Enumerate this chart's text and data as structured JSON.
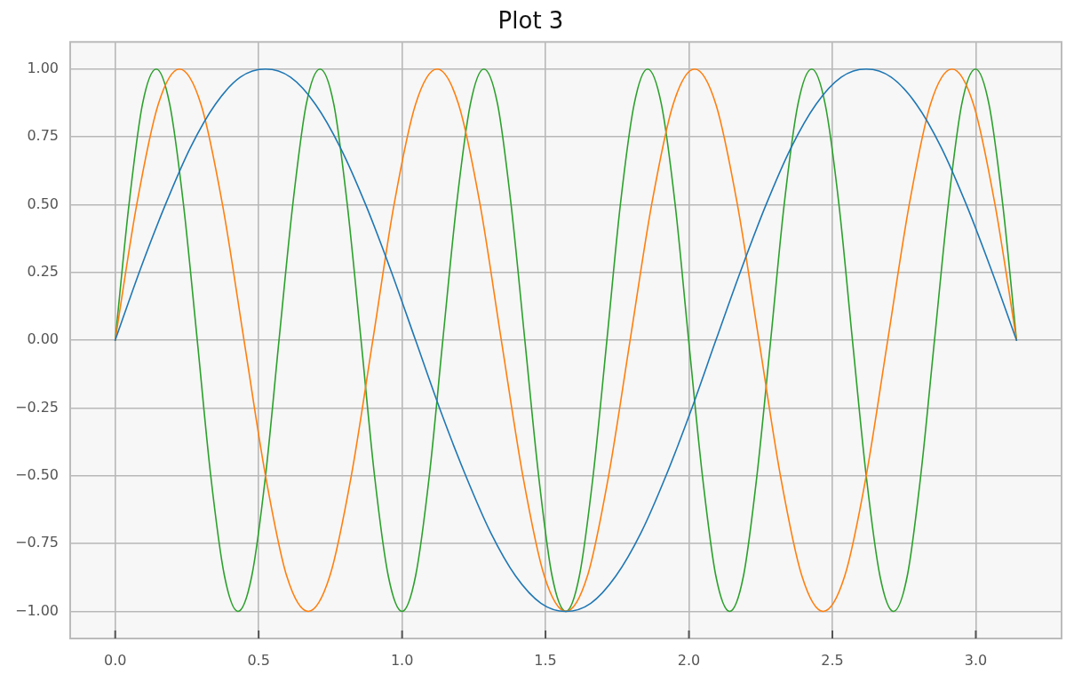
{
  "chart_data": {
    "type": "line",
    "title": "Plot 3",
    "xlim": [
      -0.157,
      3.299
    ],
    "ylim": [
      -1.1,
      1.1
    ],
    "xticks": [
      {
        "value": 0,
        "label": "0.0"
      },
      {
        "value": 0.5,
        "label": "0.5"
      },
      {
        "value": 1,
        "label": "1.0"
      },
      {
        "value": 1.5,
        "label": "1.5"
      },
      {
        "value": 2,
        "label": "2.0"
      },
      {
        "value": 2.5,
        "label": "2.5"
      },
      {
        "value": 3,
        "label": "3.0"
      }
    ],
    "yticks": [
      {
        "value": -1,
        "label": "−1.00"
      },
      {
        "value": -0.75,
        "label": "−0.75"
      },
      {
        "value": -0.5,
        "label": "−0.50"
      },
      {
        "value": -0.25,
        "label": "−0.25"
      },
      {
        "value": 0,
        "label": "0.00"
      },
      {
        "value": 0.25,
        "label": "0.25"
      },
      {
        "value": 0.5,
        "label": "0.50"
      },
      {
        "value": 0.75,
        "label": "0.75"
      },
      {
        "value": 1,
        "label": "1.00"
      }
    ],
    "grid": true,
    "series": [
      {
        "color": "#1f77b4",
        "x": [
          0,
          0.087,
          0.175,
          0.262,
          0.349,
          0.436,
          0.524,
          0.611,
          0.698,
          0.785,
          0.873,
          0.96,
          1.047,
          1.134,
          1.222,
          1.309,
          1.396,
          1.484,
          1.571,
          1.658,
          1.745,
          1.833,
          1.92,
          2.007,
          2.094,
          2.182,
          2.269,
          2.356,
          2.443,
          2.531,
          2.618,
          2.705,
          2.793,
          2.88,
          2.967,
          3.054,
          3.142
        ],
        "values": [
          0,
          0.26,
          0.5,
          0.71,
          0.87,
          0.97,
          1,
          0.97,
          0.87,
          0.71,
          0.5,
          0.26,
          0,
          -0.26,
          -0.5,
          -0.71,
          -0.87,
          -0.97,
          -1,
          -0.97,
          -0.87,
          -0.71,
          -0.5,
          -0.26,
          0,
          0.26,
          0.5,
          0.71,
          0.87,
          0.97,
          1,
          0.97,
          0.87,
          0.71,
          0.5,
          0.26,
          0
        ]
      },
      {
        "color": "#ff7f0e",
        "x": [
          0,
          0.075,
          0.15,
          0.224,
          0.299,
          0.374,
          0.449,
          0.524,
          0.598,
          0.673,
          0.748,
          0.823,
          0.898,
          0.972,
          1.047,
          1.122,
          1.197,
          1.272,
          1.346,
          1.421,
          1.496,
          1.571,
          1.646,
          1.72,
          1.795,
          1.87,
          1.945,
          2.02,
          2.094,
          2.169,
          2.244,
          2.319,
          2.394,
          2.468,
          2.543,
          2.618,
          2.693,
          2.768,
          2.842,
          2.917,
          2.992,
          3.067,
          3.142
        ],
        "values": [
          0,
          0.5,
          0.87,
          1,
          0.87,
          0.5,
          0,
          -0.5,
          -0.87,
          -1,
          -0.87,
          -0.5,
          0,
          0.5,
          0.87,
          1,
          0.87,
          0.5,
          0,
          -0.5,
          -0.87,
          -1,
          -0.87,
          -0.5,
          0,
          0.5,
          0.87,
          1,
          0.87,
          0.5,
          0,
          -0.5,
          -0.87,
          -1,
          -0.87,
          -0.5,
          0,
          0.5,
          0.87,
          1,
          0.87,
          0.5,
          0
        ]
      },
      {
        "color": "#2ca02c",
        "x": [
          0,
          0.048,
          0.095,
          0.143,
          0.19,
          0.238,
          0.286,
          0.333,
          0.381,
          0.428,
          0.476,
          0.524,
          0.571,
          0.619,
          0.666,
          0.714,
          0.762,
          0.809,
          0.857,
          0.904,
          0.952,
          1.0,
          1.047,
          1.095,
          1.142,
          1.19,
          1.238,
          1.285,
          1.333,
          1.38,
          1.428,
          1.476,
          1.523,
          1.571,
          1.618,
          1.666,
          1.714,
          1.761,
          1.809,
          1.856,
          1.904,
          1.952,
          1.999,
          2.047,
          2.094,
          2.142,
          2.19,
          2.237,
          2.285,
          2.332,
          2.38,
          2.428,
          2.475,
          2.523,
          2.57,
          2.618,
          2.666,
          2.713,
          2.761,
          2.808,
          2.856,
          2.904,
          2.951,
          2.999,
          3.046,
          3.094,
          3.142
        ],
        "values": [
          0,
          0.5,
          0.87,
          1,
          0.87,
          0.5,
          0,
          -0.5,
          -0.87,
          -1,
          -0.87,
          -0.5,
          0,
          0.5,
          0.87,
          1,
          0.87,
          0.5,
          0,
          -0.5,
          -0.87,
          -1,
          -0.87,
          -0.5,
          0,
          0.5,
          0.87,
          1,
          0.87,
          0.5,
          0,
          -0.5,
          -0.87,
          -1,
          -0.87,
          -0.5,
          0,
          0.5,
          0.87,
          1,
          0.87,
          0.5,
          0,
          -0.5,
          -0.87,
          -1,
          -0.87,
          -0.5,
          0,
          0.5,
          0.87,
          1,
          0.87,
          0.5,
          0,
          -0.5,
          -0.87,
          -1,
          -0.87,
          -0.5,
          0,
          0.5,
          0.87,
          1,
          0.87,
          0.5,
          0
        ]
      }
    ]
  }
}
